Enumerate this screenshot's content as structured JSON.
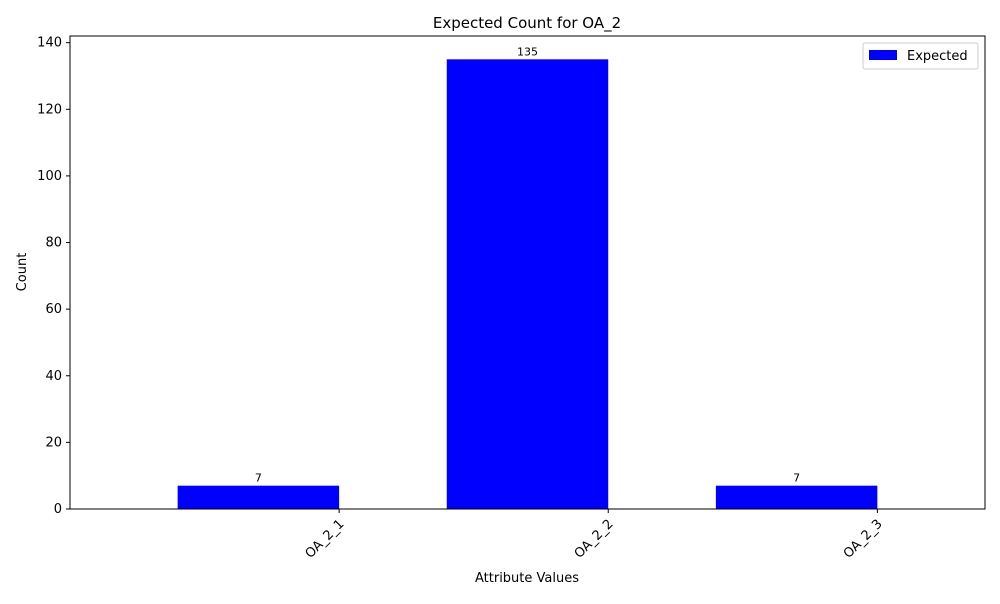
{
  "chart_data": {
    "type": "bar",
    "title": "Expected Count for OA_2",
    "xlabel": "Attribute Values",
    "ylabel": "Count",
    "categories": [
      "OA_2_1",
      "OA_2_2",
      "OA_2_3"
    ],
    "series": [
      {
        "name": "Expected",
        "values": [
          7,
          135,
          7
        ],
        "color": "#0000ff"
      }
    ],
    "data_labels": [
      "7",
      "135",
      "7"
    ],
    "yticks": [
      0,
      20,
      40,
      60,
      80,
      100,
      120,
      140
    ],
    "ylim": [
      0,
      142
    ],
    "grid": false,
    "legend_position": "top-right"
  }
}
